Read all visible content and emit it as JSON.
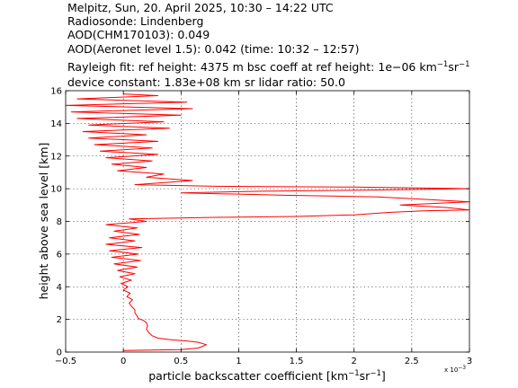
{
  "header": {
    "line1": "Melpitz, Sun, 20. April 2025, 10:30 – 14:22 UTC",
    "line2": "Radiosonde: Lindenberg",
    "line3": "AOD(CHM170103): 0.049",
    "line4": "AOD(Aeronet level 1.5): 0.042   (time: 10:32 – 12:57)",
    "line5_a": "Rayleigh fit:     ref height: 4375 m     bsc coeff at ref height: 1e−06 km",
    "line5_sup1": "−1",
    "line5_mid": "sr",
    "line5_sup2": "−1",
    "line6": "device constant: 1.83e+08 km sr     lidar ratio: 50.0"
  },
  "chart_data": {
    "type": "line",
    "xlabel_main": "particle backscatter coefficient [km",
    "xlabel_sup1": "−1",
    "xlabel_mid": "sr",
    "xlabel_sup2": "−1",
    "xlabel_end": "]",
    "ylabel": "height above sea level [km]",
    "x_multiplier": "x 10",
    "x_multiplier_exp": "−3",
    "xlim": [
      -0.5,
      3
    ],
    "ylim": [
      0,
      16
    ],
    "xticks": [
      -0.5,
      0,
      0.5,
      1,
      1.5,
      2,
      2.5,
      3
    ],
    "xtick_labels": [
      "−0.5",
      "0",
      "0.5",
      "1",
      "1.5",
      "2",
      "2.5",
      "3"
    ],
    "yticks": [
      0,
      2,
      4,
      6,
      8,
      10,
      12,
      14,
      16
    ],
    "ytick_labels": [
      "0",
      "2",
      "4",
      "6",
      "8",
      "10",
      "12",
      "14",
      "16"
    ],
    "grid": true,
    "series": [
      {
        "color": "#ff0000",
        "points": [
          [
            0.0,
            0.1
          ],
          [
            0.5,
            0.15
          ],
          [
            0.65,
            0.25
          ],
          [
            0.72,
            0.45
          ],
          [
            0.65,
            0.6
          ],
          [
            0.55,
            0.68
          ],
          [
            0.42,
            0.75
          ],
          [
            0.3,
            0.85
          ],
          [
            0.25,
            1.0
          ],
          [
            0.22,
            1.2
          ],
          [
            0.2,
            1.4
          ],
          [
            0.21,
            1.6
          ],
          [
            0.2,
            1.8
          ],
          [
            0.17,
            1.95
          ],
          [
            0.13,
            2.05
          ],
          [
            0.12,
            2.2
          ],
          [
            0.1,
            2.4
          ],
          [
            0.1,
            2.6
          ],
          [
            0.07,
            2.8
          ],
          [
            0.05,
            3.0
          ],
          [
            0.08,
            3.2
          ],
          [
            0.03,
            3.4
          ],
          [
            0.06,
            3.6
          ],
          [
            0.0,
            3.8
          ],
          [
            0.04,
            4.0
          ],
          [
            -0.02,
            4.2
          ],
          [
            0.07,
            4.4
          ],
          [
            -0.03,
            4.6
          ],
          [
            0.1,
            4.8
          ],
          [
            -0.05,
            5.0
          ],
          [
            0.12,
            5.2
          ],
          [
            -0.08,
            5.4
          ],
          [
            0.15,
            5.6
          ],
          [
            -0.1,
            5.8
          ],
          [
            0.13,
            6.0
          ],
          [
            -0.12,
            6.2
          ],
          [
            0.16,
            6.4
          ],
          [
            -0.15,
            6.6
          ],
          [
            0.1,
            6.8
          ],
          [
            -0.12,
            7.0
          ],
          [
            0.14,
            7.2
          ],
          [
            -0.08,
            7.4
          ],
          [
            0.12,
            7.6
          ],
          [
            -0.15,
            7.8
          ],
          [
            0.2,
            8.0
          ],
          [
            0.05,
            8.15
          ],
          [
            0.8,
            8.25
          ],
          [
            1.5,
            8.3
          ],
          [
            2.0,
            8.4
          ],
          [
            2.3,
            8.55
          ],
          [
            2.6,
            8.65
          ],
          [
            3.0,
            8.7
          ],
          [
            2.8,
            8.85
          ],
          [
            2.4,
            9.0
          ],
          [
            2.7,
            9.1
          ],
          [
            3.0,
            9.2
          ],
          [
            2.6,
            9.35
          ],
          [
            2.2,
            9.5
          ],
          [
            1.4,
            9.6
          ],
          [
            0.5,
            9.75
          ],
          [
            1.2,
            9.85
          ],
          [
            2.0,
            9.9
          ],
          [
            2.5,
            9.95
          ],
          [
            3.0,
            10.0
          ],
          [
            2.0,
            10.1
          ],
          [
            0.8,
            10.15
          ],
          [
            0.1,
            10.25
          ],
          [
            0.6,
            10.5
          ],
          [
            0.2,
            10.7
          ],
          [
            0.35,
            10.9
          ],
          [
            -0.05,
            11.1
          ],
          [
            0.2,
            11.3
          ],
          [
            -0.1,
            11.5
          ],
          [
            0.25,
            11.7
          ],
          [
            -0.15,
            11.9
          ],
          [
            0.3,
            12.1
          ],
          [
            -0.2,
            12.3
          ],
          [
            0.25,
            12.5
          ],
          [
            -0.25,
            12.7
          ],
          [
            0.3,
            12.9
          ],
          [
            -0.3,
            13.1
          ],
          [
            0.2,
            13.3
          ],
          [
            -0.35,
            13.5
          ],
          [
            0.4,
            13.7
          ],
          [
            -0.3,
            13.9
          ],
          [
            0.35,
            14.1
          ],
          [
            -0.4,
            14.3
          ],
          [
            0.5,
            14.5
          ],
          [
            -0.45,
            14.7
          ],
          [
            0.6,
            14.9
          ],
          [
            -0.5,
            15.1
          ],
          [
            0.55,
            15.3
          ],
          [
            -0.4,
            15.5
          ],
          [
            0.3,
            15.7
          ],
          [
            0.0,
            15.8
          ]
        ]
      }
    ]
  }
}
